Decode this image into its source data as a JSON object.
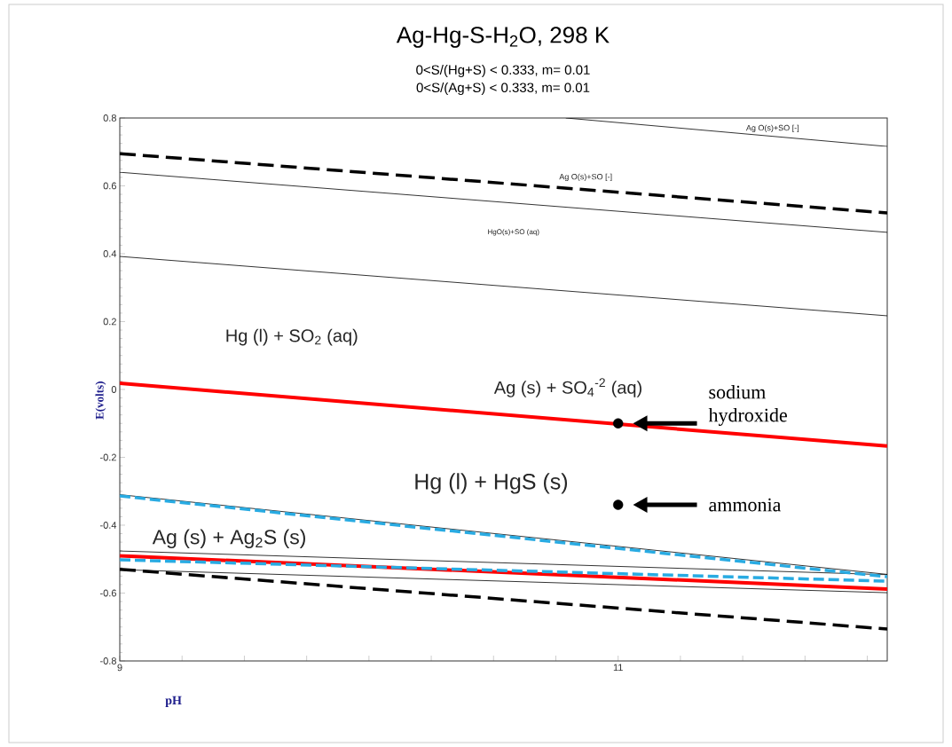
{
  "chart_data": {
    "type": "line",
    "title": "Ag-Hg-S-H$_{2}$O, 298 K",
    "subtitle": "0<S/(Hg+S) < 0.333, m= 0.01",
    "xlabel": "pH",
    "ylabel": "E(volts)",
    "xlim": [
      9,
      12.08
    ],
    "ylim": [
      -0.8,
      0.8
    ],
    "xticks": [
      9,
      {
        "value": 9.25,
        "label": null
      },
      {
        "value": 9.5,
        "label": null
      },
      {
        "value": 9.75,
        "label": null
      },
      {
        "value": 10,
        "label": null
      },
      {
        "value": 10.25,
        "label": null
      },
      {
        "value": 10.5,
        "label": null
      },
      {
        "value": 10.75,
        "label": null
      },
      11,
      {
        "value": 11.25,
        "label": null
      },
      {
        "value": 11.5,
        "label": null
      },
      {
        "value": 11.75,
        "label": null
      },
      {
        "value": 12,
        "label": null
      }
    ],
    "yticks": [
      -0.8,
      -0.6,
      -0.4,
      -0.2,
      0,
      0.2,
      0.4,
      0.6,
      0.8
    ],
    "grid": false,
    "line_style": "solid",
    "marker": "none",
    "series": [
      {
        "color": "#000000",
        "x": [
          10.79,
          12.08
        ],
        "values": [
          0.8,
          0.716
        ]
      },
      {
        "color": "#000000",
        "x": [
          9,
          12.08
        ],
        "values": [
          0.64,
          0.463
        ]
      },
      {
        "color": "#000000",
        "x": [
          9,
          12.08
        ],
        "values": [
          0.392,
          0.217
        ]
      },
      {
        "color": "#000000",
        "x": [
          9,
          12.08
        ],
        "values": [
          -0.31,
          -0.545
        ]
      },
      {
        "color": "#000000",
        "x": [
          9,
          12.08
        ],
        "values": [
          -0.476,
          -0.546
        ]
      },
      {
        "color": "#000000",
        "x": [
          9,
          12.08
        ],
        "values": [
          -0.531,
          -0.599
        ]
      },
      {
        "color": "#000000",
        "line_style": "dashed",
        "x": [
          9,
          12.08
        ],
        "values": [
          0.695,
          0.52
        ]
      },
      {
        "color": "#000000",
        "line_style": "dashed",
        "x": [
          9,
          12.08
        ],
        "values": [
          -0.53,
          -0.706
        ]
      },
      {
        "color": "#ff0000",
        "x": [
          9,
          12.08
        ],
        "values": [
          0.018,
          -0.167
        ]
      },
      {
        "color": "#ff0000",
        "x": [
          9,
          12.08
        ],
        "values": [
          -0.49,
          -0.588
        ]
      },
      {
        "color": "#29abe2",
        "line_style": "dashed",
        "x": [
          9,
          12.08
        ],
        "values": [
          -0.314,
          -0.552
        ]
      },
      {
        "color": "#29abe2",
        "line_style": "dashed",
        "x": [
          9,
          12.08
        ],
        "values": [
          -0.502,
          -0.565
        ]
      },
      {
        "type": "scatter",
        "marker": "circle",
        "color": "#000000",
        "x": [
          11,
          11
        ],
        "values": [
          -0.1,
          -0.34
        ]
      }
    ],
    "annotations": [
      "0<S/(Ag+S) < 0.333, m= 0.01",
      "Ag O(s)+SO [-]",
      "Ag O(s)+SO [-]",
      "HgO(s)+SO (aq)",
      "Hg (l) + SO$_{2}$ (aq)",
      "Ag (s) + SO$_{4}$$^{-2}$ (aq)",
      "Hg (l) + HgS (s)",
      "Ag (s) + Ag$_{2}$S (s)",
      "sodium hydroxide",
      "ammonia"
    ]
  }
}
